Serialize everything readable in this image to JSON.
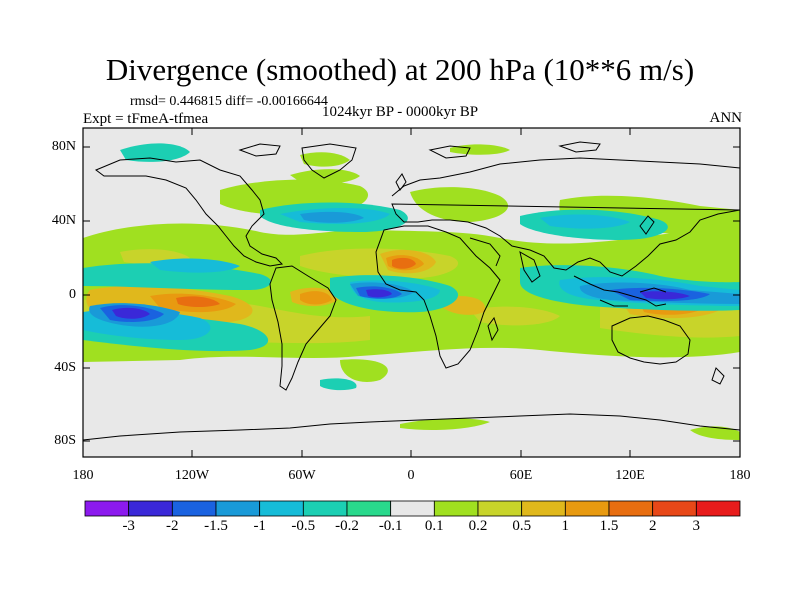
{
  "header": {
    "title": "Divergence (smoothed) at 200 hPa (10**6 m/s)",
    "stats": "rmsd= 0.446815 diff= -0.00166644",
    "period": "1024kyr BP - 0000kyr BP",
    "experiment": "Expt = tFmeA-tfmea",
    "season": "ANN"
  },
  "axes": {
    "lat_labels": [
      "80N",
      "40N",
      "0",
      "40S",
      "80S"
    ],
    "lon_labels": [
      "180",
      "120W",
      "60W",
      "0",
      "60E",
      "120E",
      "180"
    ]
  },
  "colorbar": {
    "labels": [
      "-3",
      "-2",
      "-1.5",
      "-1",
      "-0.5",
      "-0.2",
      "-0.1",
      "0.1",
      "0.2",
      "0.5",
      "1",
      "1.5",
      "2",
      "3"
    ],
    "colors": [
      "#8c1aee",
      "#3a28d8",
      "#1a62e0",
      "#199ad8",
      "#16bcd8",
      "#1ccfb3",
      "#29d98c",
      "#e8e8e8",
      "#a0e020",
      "#c8d42a",
      "#e0b81c",
      "#e89a10",
      "#e86e10",
      "#e84818",
      "#e81c1c"
    ]
  },
  "palette": {
    "land_outline": "#000000",
    "background": "#e8e8e8"
  }
}
